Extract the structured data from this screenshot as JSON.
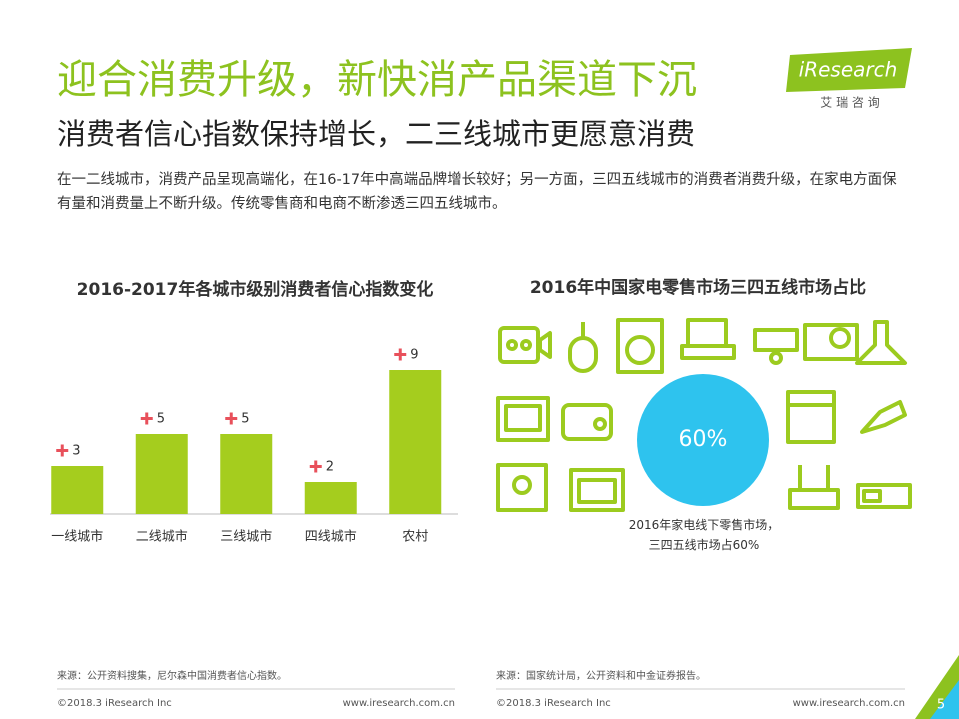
{
  "header": {
    "title": "迎合消费升级，新快消产品渠道下沉",
    "subtitle": "消费者信心指数保持增长，二三线城市更愿意消费",
    "text": "在一二线城市，消费产品呈现高端化，在16-17年中高端品牌增长较好；另一方面，三四五线城市的消费者消费升级，在家电方面保有量和消费量上不断升级。传统零售商和电商不断渗透三四五线城市。",
    "logo": "iResearch",
    "logo_sub": "艾 瑞 咨 询"
  },
  "chart_data": [
    {
      "type": "bar",
      "title": "2016-2017年各城市级别消费者信心指数变化",
      "categories": [
        "一线城市",
        "二线城市",
        "三线城市",
        "四线城市",
        "农村"
      ],
      "values": [
        3,
        5,
        5,
        2,
        9
      ],
      "color": "#a5cd1e",
      "marker_color": "#e8505b"
    },
    {
      "type": "circle",
      "title": "2016年中国家电零售市场三四五线市场占比",
      "values": [
        60
      ],
      "value_labels": [
        "60%"
      ],
      "color": "#2ec3ee",
      "caption": "2016年家电线下零售市场，三四五线市场占60%"
    }
  ],
  "footer": {
    "sources": [
      "来源：公开资料搜集，尼尔森中国消费者信心指数。",
      "来源：国家统计局，公开资料和中金证券报告。"
    ],
    "copyright": "©2018.3 iResearch Inc",
    "url": "www.iresearch.com.cn",
    "page": "5"
  }
}
